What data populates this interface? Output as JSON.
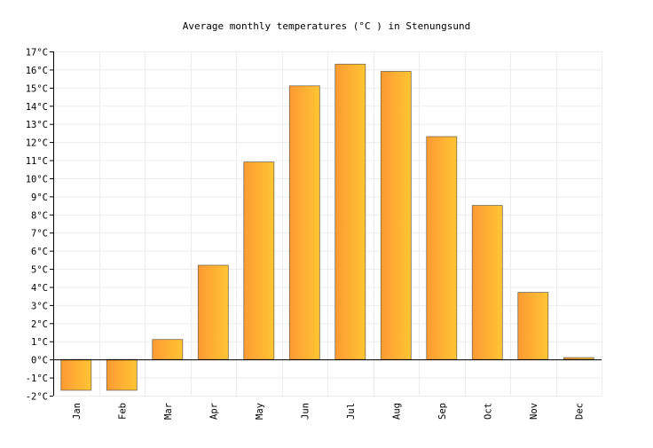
{
  "chart_data": {
    "type": "bar",
    "title": "Average monthly temperatures (°C ) in Stenungsund",
    "xlabel": "",
    "ylabel": "",
    "categories": [
      "Jan",
      "Feb",
      "Mar",
      "Apr",
      "May",
      "Jun",
      "Jul",
      "Aug",
      "Sep",
      "Oct",
      "Nov",
      "Dec"
    ],
    "values": [
      -1.7,
      -1.7,
      1.1,
      5.2,
      10.9,
      15.1,
      16.3,
      15.9,
      12.3,
      8.5,
      3.7,
      0.1
    ],
    "ylim": [
      -2,
      17
    ],
    "yticks": [
      -2,
      -1,
      0,
      1,
      2,
      3,
      4,
      5,
      6,
      7,
      8,
      9,
      10,
      11,
      12,
      13,
      14,
      15,
      16,
      17
    ],
    "ytick_suffix": "°C",
    "grid": true,
    "legend": "none",
    "colors": {
      "bar_gradient_start": "#fd9a33",
      "bar_gradient_end": "#ffc533",
      "bar_stroke": "#7a6a4a",
      "grid": "#ececec",
      "axis": "#000000"
    }
  }
}
